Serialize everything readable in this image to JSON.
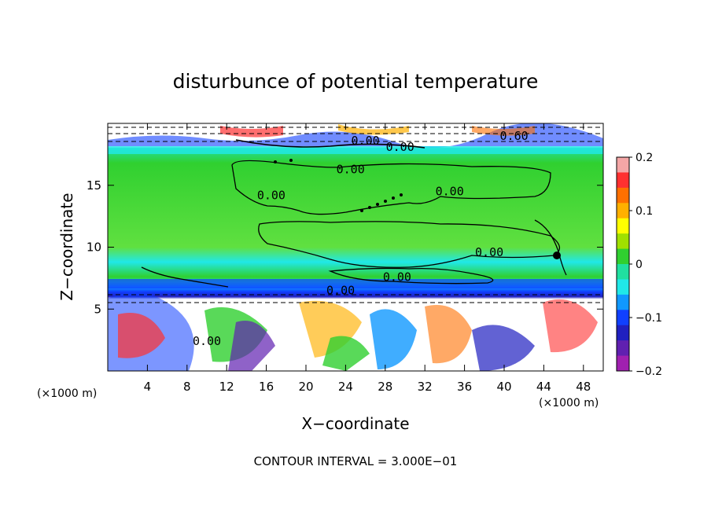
{
  "chart_data": {
    "type": "heatmap",
    "title": "disturbunce of potential temperature",
    "xlabel": "X−coordinate",
    "ylabel": "Z−coordinate",
    "x_unit_left": "(×1000 m)",
    "x_unit_right": "(×1000 m)",
    "footer": "CONTOUR INTERVAL = 3.000E−01",
    "xlim": [
      0,
      50
    ],
    "ylim": [
      0,
      20
    ],
    "x_ticks": [
      4,
      8,
      12,
      16,
      20,
      24,
      28,
      32,
      36,
      40,
      44,
      48
    ],
    "y_ticks": [
      5,
      10,
      15
    ],
    "colorbar": {
      "range": [
        -0.2,
        0.2
      ],
      "ticks": [
        "0.2",
        "0.1",
        "0",
        "−0.1",
        "−0.2"
      ],
      "colors": [
        "#f4a6a6",
        "#ff3030",
        "#ff7000",
        "#ffb000",
        "#ffff00",
        "#a0e000",
        "#30d030",
        "#20e0a0",
        "#20e8e8",
        "#1098ff",
        "#1040ff",
        "#2020c0",
        "#6020b0",
        "#a020b0"
      ]
    },
    "contour_labels": [
      {
        "x": 26,
        "z": 18.6,
        "text": "0.00"
      },
      {
        "x": 29.5,
        "z": 18.1,
        "text": "0.00"
      },
      {
        "x": 41,
        "z": 19.0,
        "text": "0.60"
      },
      {
        "x": 24.5,
        "z": 16.3,
        "text": "0.00"
      },
      {
        "x": 16.5,
        "z": 14.2,
        "text": "0.00"
      },
      {
        "x": 34.5,
        "z": 14.5,
        "text": "0.00"
      },
      {
        "x": 38.5,
        "z": 9.6,
        "text": "0.00"
      },
      {
        "x": 29.2,
        "z": 7.6,
        "text": "0.00"
      },
      {
        "x": 23.5,
        "z": 6.5,
        "text": "0.00"
      },
      {
        "x": 10,
        "z": 2.4,
        "text": "0.00"
      }
    ]
  }
}
